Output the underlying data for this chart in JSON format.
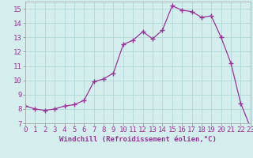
{
  "x": [
    0,
    1,
    2,
    3,
    4,
    5,
    6,
    7,
    8,
    9,
    10,
    11,
    12,
    13,
    14,
    15,
    16,
    17,
    18,
    19,
    20,
    21,
    22,
    23
  ],
  "y": [
    8.2,
    8.0,
    7.9,
    8.0,
    8.2,
    8.3,
    8.6,
    9.9,
    10.1,
    10.5,
    12.5,
    12.8,
    13.4,
    12.9,
    13.5,
    15.2,
    14.9,
    14.8,
    14.4,
    14.5,
    13.0,
    11.2,
    8.4,
    6.7
  ],
  "line_color": "#993399",
  "marker": "+",
  "marker_size": 4,
  "bg_color": "#d4eeee",
  "grid_color": "#b0d8d8",
  "xlabel": "Windchill (Refroidissement éolien,°C)",
  "xlabel_fontsize": 6.5,
  "tick_fontsize": 6.5,
  "ylim": [
    7,
    15.5
  ],
  "xlim": [
    0,
    23
  ],
  "yticks": [
    7,
    8,
    9,
    10,
    11,
    12,
    13,
    14,
    15
  ],
  "xticks": [
    0,
    1,
    2,
    3,
    4,
    5,
    6,
    7,
    8,
    9,
    10,
    11,
    12,
    13,
    14,
    15,
    16,
    17,
    18,
    19,
    20,
    21,
    22,
    23
  ]
}
